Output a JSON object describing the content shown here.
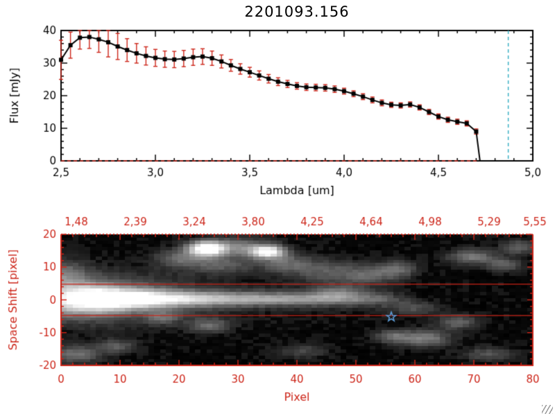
{
  "title": "2201093.156",
  "colors": {
    "background": "#ffffff",
    "axis_black": "#000000",
    "axis_red": "#cc2418",
    "error_bar": "#cc2418",
    "line": "#000000",
    "marker": "#000000",
    "vline_cyan": "#3aafc4",
    "star_blue": "#5b9bd5",
    "image_background": "#000000"
  },
  "chart_data": [
    {
      "type": "line",
      "title": "2201093.156",
      "xlabel": "Lambda [um]",
      "ylabel": "Flux [mJy]",
      "xlim": [
        2.5,
        5.0
      ],
      "ylim": [
        0,
        40
      ],
      "xtick_values": [
        2.5,
        3.0,
        3.5,
        4.0,
        4.5,
        5.0
      ],
      "xtick_labels": [
        "2,5",
        "3,0",
        "3,5",
        "4,0",
        "4,5",
        "5,0"
      ],
      "ytick_values": [
        0,
        10,
        20,
        30,
        40
      ],
      "ytick_labels": [
        "0",
        "10",
        "20",
        "30",
        "40"
      ],
      "x": [
        2.5,
        2.55,
        2.6,
        2.65,
        2.7,
        2.75,
        2.8,
        2.85,
        2.9,
        2.95,
        3.0,
        3.05,
        3.1,
        3.15,
        3.2,
        3.25,
        3.3,
        3.35,
        3.4,
        3.45,
        3.5,
        3.55,
        3.6,
        3.65,
        3.7,
        3.75,
        3.8,
        3.85,
        3.9,
        3.95,
        4.0,
        4.05,
        4.1,
        4.15,
        4.2,
        4.25,
        4.3,
        4.35,
        4.4,
        4.45,
        4.5,
        4.55,
        4.6,
        4.65,
        4.7
      ],
      "flux": [
        31.0,
        35.5,
        37.8,
        38.0,
        37.3,
        36.4,
        35.1,
        34.0,
        33.0,
        32.2,
        31.6,
        31.2,
        31.1,
        31.4,
        31.8,
        32.0,
        31.5,
        30.5,
        29.3,
        28.2,
        27.2,
        26.2,
        25.2,
        24.3,
        23.6,
        23.0,
        22.6,
        22.5,
        22.4,
        22.0,
        21.4,
        20.6,
        19.7,
        18.7,
        17.8,
        17.2,
        17.0,
        17.3,
        16.4,
        15.0,
        13.6,
        12.6,
        12.0,
        11.5,
        9.0
      ],
      "flux_err": [
        6.0,
        4.0,
        3.5,
        3.5,
        4.0,
        4.5,
        4.0,
        3.5,
        3.0,
        2.8,
        2.6,
        2.5,
        2.5,
        2.5,
        2.5,
        2.4,
        2.2,
        2.0,
        1.8,
        1.6,
        1.5,
        1.4,
        1.3,
        1.2,
        1.1,
        1.0,
        1.0,
        1.0,
        1.0,
        1.0,
        0.9,
        0.9,
        0.9,
        0.9,
        0.9,
        0.8,
        0.8,
        0.8,
        0.8,
        0.8,
        0.8,
        0.8,
        0.8,
        0.8,
        0.8
      ],
      "zero_tail_x": [
        4.72,
        5.0
      ],
      "vline_x": 4.87,
      "hline_y": 0,
      "grid": false
    },
    {
      "type": "heatmap",
      "xlabel": "Pixel",
      "ylabel": "Space Shift [pixel]",
      "xlim": [
        0,
        80
      ],
      "ylim": [
        -20,
        20
      ],
      "xtick_values": [
        0,
        10,
        20,
        30,
        40,
        50,
        60,
        70,
        80
      ],
      "xtick_labels": [
        "0",
        "10",
        "20",
        "30",
        "40",
        "50",
        "60",
        "70",
        "80"
      ],
      "ytick_values": [
        -20,
        -10,
        0,
        10,
        20
      ],
      "ytick_labels": [
        "-20",
        "-10",
        "0",
        "10",
        "20"
      ],
      "top_axis_labels": [
        "1,48",
        "2,39",
        "3,24",
        "3,80",
        "4,25",
        "4,64",
        "4,98",
        "5,29",
        "5,55"
      ],
      "aperture_lines_y": [
        4.8,
        -4.8
      ],
      "star_marker": {
        "x": 56,
        "y": -5.2
      },
      "streak": {
        "center_y": 0.3,
        "intensity_points": [
          [
            0,
            0.55
          ],
          [
            3,
            0.8
          ],
          [
            6,
            0.95
          ],
          [
            9,
            1.0
          ],
          [
            14,
            1.0
          ],
          [
            18,
            0.8
          ],
          [
            24,
            0.68
          ],
          [
            30,
            0.6
          ],
          [
            36,
            0.55
          ],
          [
            42,
            0.5
          ],
          [
            48,
            0.42
          ],
          [
            52,
            0.34
          ],
          [
            55,
            0.26
          ],
          [
            57,
            0.15
          ],
          [
            59,
            0.07
          ],
          [
            61,
            0
          ]
        ],
        "sigma_points": [
          [
            0,
            3.2
          ],
          [
            6,
            2.6
          ],
          [
            12,
            2.0
          ],
          [
            20,
            1.7
          ],
          [
            35,
            1.5
          ],
          [
            80,
            1.5
          ]
        ],
        "halo_points": [
          [
            0,
            0.38
          ],
          [
            6,
            0.45
          ],
          [
            12,
            0.35
          ],
          [
            18,
            0.22
          ],
          [
            24,
            0.12
          ],
          [
            30,
            0.06
          ],
          [
            40,
            0.04
          ],
          [
            55,
            0.03
          ],
          [
            60,
            0
          ]
        ],
        "halo_sigma": 5
      },
      "blobs": [
        [
          24.5,
          16,
          2.2,
          1.6,
          1.1
        ],
        [
          35,
          15,
          2.0,
          1.4,
          0.95
        ],
        [
          30,
          16.5,
          3.5,
          2.0,
          0.4
        ],
        [
          20,
          13,
          3,
          2,
          0.32
        ],
        [
          27,
          11,
          4,
          2,
          0.26
        ],
        [
          38,
          11.5,
          3,
          2,
          0.3
        ],
        [
          45,
          9,
          4,
          2.5,
          0.26
        ],
        [
          52,
          7.5,
          3,
          2,
          0.24
        ],
        [
          57,
          9.5,
          2.5,
          1.8,
          0.33
        ],
        [
          70,
          13.5,
          2.8,
          1.6,
          0.38
        ],
        [
          75.5,
          11,
          2,
          1.4,
          0.3
        ],
        [
          78,
          16.5,
          2,
          1.5,
          0.28
        ],
        [
          62,
          -12,
          3,
          1.8,
          0.4
        ],
        [
          56.5,
          -11.5,
          2,
          1.4,
          0.32
        ],
        [
          67.5,
          -7,
          2.5,
          1.5,
          0.3
        ],
        [
          25,
          -8,
          2.5,
          1.6,
          0.3
        ],
        [
          17,
          -5.5,
          2,
          1.4,
          0.26
        ],
        [
          2,
          -17,
          3,
          2,
          0.34
        ],
        [
          9,
          -14.5,
          2.2,
          1.5,
          0.26
        ],
        [
          47,
          2.5,
          3,
          1.5,
          0.28
        ],
        [
          0,
          8,
          3,
          3,
          0.3
        ],
        [
          60,
          -2.5,
          3,
          1.5,
          0.22
        ],
        [
          73,
          -17,
          3,
          1.5,
          0.24
        ],
        [
          41,
          -16,
          3,
          1.5,
          0.18
        ]
      ]
    }
  ]
}
